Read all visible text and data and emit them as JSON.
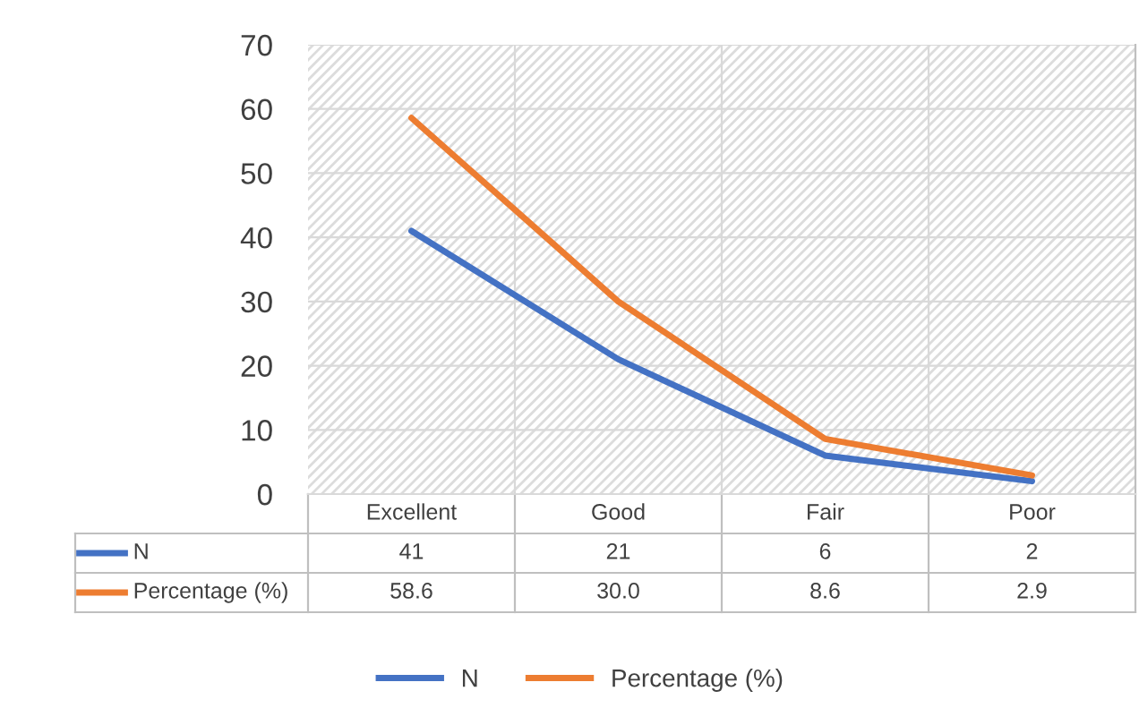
{
  "chart_data": {
    "type": "line",
    "categories": [
      "Excellent",
      "Good",
      "Fair",
      "Poor"
    ],
    "series": [
      {
        "name": "N",
        "color": "#4472c4",
        "values": [
          41,
          21,
          6,
          2
        ],
        "value_labels": [
          "41",
          "21",
          "6",
          "2"
        ]
      },
      {
        "name": "Percentage (%)",
        "color": "#ed7d31",
        "values": [
          58.6,
          30.0,
          8.6,
          2.9
        ],
        "value_labels": [
          "58.6",
          "30.0",
          "8.6",
          "2.9"
        ]
      }
    ],
    "ylim": [
      0,
      70
    ],
    "yticks": [
      0,
      10,
      20,
      30,
      40,
      50,
      60,
      70
    ],
    "grid": "y",
    "legend": "bottom",
    "marker": "none",
    "line_style": "solid"
  }
}
